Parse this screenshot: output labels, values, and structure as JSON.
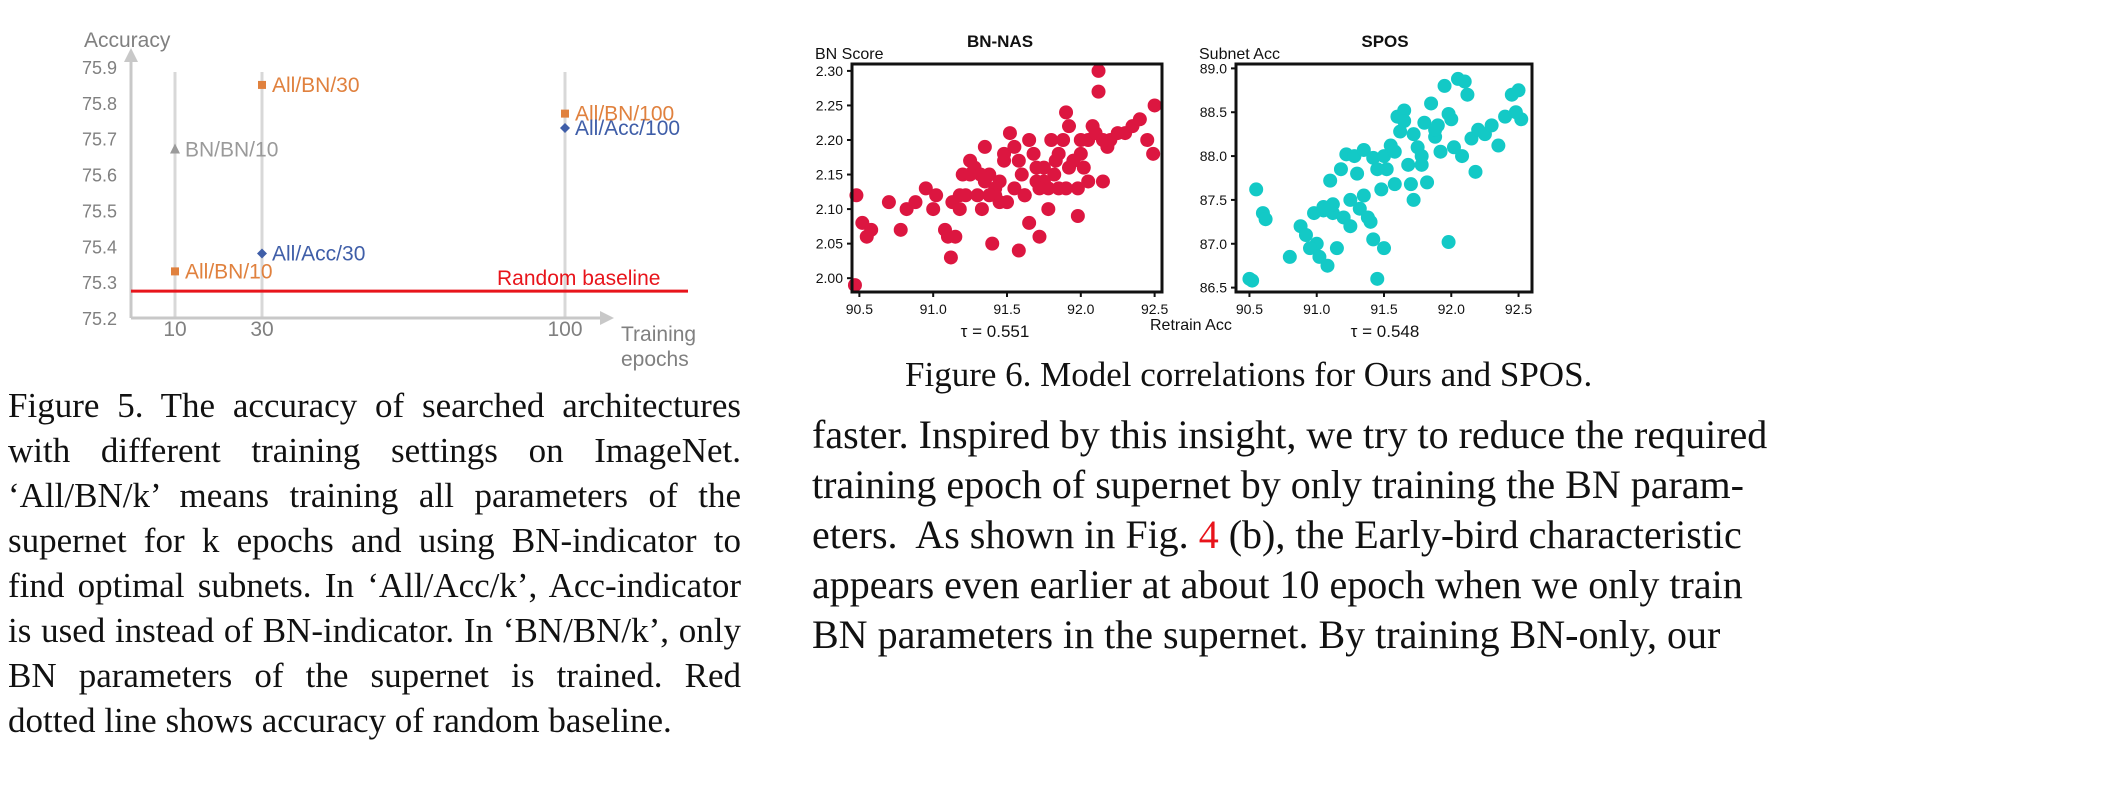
{
  "figure5": {
    "chart_data": {
      "type": "scatter",
      "ylabel": "Accuracy",
      "xlabel_line1": "Training",
      "xlabel_line2": "epochs",
      "ylim": [
        75.2,
        75.9
      ],
      "yticks": [
        "75.9",
        "75.8",
        "75.7",
        "75.6",
        "75.5",
        "75.4",
        "75.3",
        "75.2"
      ],
      "xticks": [
        "10",
        "30",
        "100"
      ],
      "grid": "vertical lines at x ticks",
      "points": [
        {
          "label": "All/BN/30",
          "x": 30,
          "y": 75.85,
          "color": "#e0813e",
          "marker": "square",
          "label_side": "right"
        },
        {
          "label": "BN/BN/10",
          "x": 10,
          "y": 75.67,
          "color": "#9a9a9a",
          "marker": "triangle",
          "label_side": "right"
        },
        {
          "label": "All/BN/100",
          "x": 100,
          "y": 75.77,
          "color": "#e0813e",
          "marker": "square",
          "label_side": "right"
        },
        {
          "label": "All/Acc/100",
          "x": 100,
          "y": 75.73,
          "color": "#3f5ea8",
          "marker": "diamond",
          "label_side": "right"
        },
        {
          "label": "All/Acc/30",
          "x": 30,
          "y": 75.38,
          "color": "#3f5ea8",
          "marker": "diamond",
          "label_side": "right"
        },
        {
          "label": "All/BN/10",
          "x": 10,
          "y": 75.33,
          "color": "#e0813e",
          "marker": "square",
          "label_side": "right"
        }
      ],
      "baseline": {
        "label": "Random baseline",
        "y": 75.275,
        "color": "#e8141b"
      }
    },
    "caption": "Figure 5. The accuracy of searched architectures with different training settings on ImageNet. ‘All/BN/k’ means training all parameters of the supernet for k epochs and using BN-indicator to find optimal subnets. In ‘All/Acc/k’, Acc-indicator is used instead of BN-indicator. In ‘BN/BN/k’, only BN parameters of the supernet is trained. Red dotted line shows accuracy of random baseline."
  },
  "figure6": {
    "chart_data": [
      {
        "type": "scatter",
        "title": "BN-NAS",
        "ylabel": "BN Score",
        "tau": "τ = 0.551",
        "color": "#dc1640",
        "xlim": [
          90.45,
          92.55
        ],
        "ylim": [
          1.98,
          2.31
        ],
        "xticks": [
          90.5,
          91.0,
          91.5,
          92.0,
          92.5
        ],
        "yticks": [
          2.0,
          2.05,
          2.1,
          2.15,
          2.2,
          2.25,
          2.3
        ],
        "x": [
          90.47,
          90.52,
          90.48,
          90.55,
          90.58,
          90.7,
          90.78,
          90.82,
          90.88,
          90.95,
          91.0,
          91.02,
          91.08,
          91.12,
          91.1,
          91.15,
          91.18,
          91.13,
          91.2,
          91.22,
          91.25,
          91.28,
          91.3,
          91.33,
          91.35,
          91.38,
          91.4,
          91.42,
          91.45,
          91.48,
          91.5,
          91.52,
          91.55,
          91.58,
          91.6,
          91.62,
          91.65,
          91.68,
          91.7,
          91.72,
          91.75,
          91.78,
          91.8,
          91.82,
          91.85,
          91.88,
          91.9,
          91.92,
          91.95,
          91.98,
          92.0,
          92.02,
          92.05,
          92.08,
          92.1,
          92.12,
          92.15,
          92.18,
          92.2,
          92.25,
          92.3,
          92.35,
          92.4,
          92.45,
          92.5,
          92.49,
          92.12,
          91.98,
          91.65,
          91.58,
          91.42,
          91.32,
          91.9,
          91.92,
          91.83,
          91.75,
          91.62,
          91.7,
          91.48,
          91.55,
          91.85,
          92.05,
          91.25,
          91.35,
          91.45,
          91.38,
          91.18,
          92.15,
          92.0,
          91.95,
          91.78,
          91.72
        ],
        "y": [
          1.99,
          2.08,
          2.12,
          2.06,
          2.07,
          2.11,
          2.07,
          2.1,
          2.11,
          2.13,
          2.1,
          2.12,
          2.07,
          2.03,
          2.06,
          2.06,
          2.12,
          2.11,
          2.15,
          2.12,
          2.17,
          2.16,
          2.12,
          2.1,
          2.14,
          2.15,
          2.05,
          2.13,
          2.11,
          2.17,
          2.11,
          2.21,
          2.13,
          2.17,
          2.15,
          2.12,
          2.2,
          2.18,
          2.14,
          2.06,
          2.16,
          2.1,
          2.2,
          2.15,
          2.18,
          2.2,
          2.24,
          2.22,
          2.17,
          2.09,
          2.2,
          2.16,
          2.2,
          2.22,
          2.21,
          2.3,
          2.14,
          2.19,
          2.2,
          2.21,
          2.21,
          2.22,
          2.23,
          2.2,
          2.25,
          2.18,
          2.27,
          2.13,
          2.08,
          2.04,
          2.12,
          2.15,
          2.13,
          2.16,
          2.17,
          2.14,
          2.12,
          2.16,
          2.18,
          2.19,
          2.13,
          2.14,
          2.15,
          2.19,
          2.14,
          2.12,
          2.1,
          2.2,
          2.18,
          2.17,
          2.13,
          2.13
        ]
      },
      {
        "type": "scatter",
        "title": "SPOS",
        "ylabel": "Subnet Acc",
        "tau": "τ = 0.548",
        "color": "#13c9c6",
        "xlim": [
          90.4,
          92.6
        ],
        "ylim": [
          86.45,
          89.05
        ],
        "xticks": [
          90.5,
          91.0,
          91.5,
          92.0,
          92.5
        ],
        "yticks": [
          86.5,
          87.0,
          87.5,
          88.0,
          88.5,
          89.0
        ],
        "x": [
          90.5,
          90.52,
          90.55,
          90.6,
          90.62,
          90.8,
          90.88,
          90.92,
          90.98,
          91.0,
          91.02,
          91.05,
          91.08,
          91.1,
          91.12,
          91.15,
          91.18,
          91.2,
          91.22,
          91.25,
          91.28,
          91.3,
          91.32,
          91.35,
          91.38,
          91.4,
          91.42,
          91.45,
          91.48,
          91.5,
          91.52,
          91.55,
          91.58,
          91.6,
          91.62,
          91.65,
          91.68,
          91.7,
          91.72,
          91.75,
          91.78,
          91.8,
          91.82,
          91.85,
          91.88,
          91.9,
          91.92,
          91.95,
          91.98,
          92.0,
          92.02,
          92.05,
          92.08,
          92.1,
          92.12,
          92.15,
          92.18,
          92.2,
          92.25,
          92.3,
          92.35,
          92.4,
          92.45,
          92.5,
          92.52,
          92.48,
          91.42,
          91.5,
          91.98,
          91.65,
          91.72,
          91.58,
          91.35,
          91.25,
          91.12,
          91.05,
          90.95,
          91.45,
          91.88,
          91.78
        ],
        "y": [
          86.6,
          86.58,
          87.62,
          87.35,
          87.28,
          86.85,
          87.2,
          87.1,
          87.35,
          87.0,
          86.85,
          87.38,
          86.75,
          87.72,
          87.35,
          86.95,
          87.85,
          87.3,
          88.02,
          87.5,
          88.0,
          87.8,
          87.4,
          88.07,
          87.3,
          87.25,
          87.98,
          86.6,
          87.62,
          88.0,
          87.85,
          88.12,
          87.68,
          88.45,
          88.28,
          88.52,
          87.9,
          87.68,
          88.25,
          88.1,
          87.9,
          88.38,
          87.7,
          88.6,
          88.22,
          88.35,
          88.05,
          88.8,
          88.48,
          88.42,
          88.1,
          88.88,
          88.0,
          88.85,
          88.7,
          88.2,
          87.82,
          88.3,
          88.25,
          88.35,
          88.12,
          88.45,
          88.7,
          88.75,
          88.42,
          88.5,
          87.05,
          86.95,
          87.02,
          88.4,
          87.5,
          88.05,
          87.55,
          87.2,
          87.45,
          87.42,
          86.95,
          87.85,
          88.3,
          88.0
        ]
      }
    ],
    "xlabel": "Retrain Acc",
    "caption": "Figure 6. Model correlations for Ours and SPOS."
  },
  "body": {
    "lines": [
      "faster. Inspired by this insight, we try to reduce the required",
      "training epoch of supernet by only training the BN param-",
      "eters.  As shown in Fig. ",
      "4",
      " (b), the Early-bird characteristic",
      "appears even earlier at about 10 epoch when we only train",
      "BN parameters in the supernet.  By training BN-only, our"
    ]
  }
}
